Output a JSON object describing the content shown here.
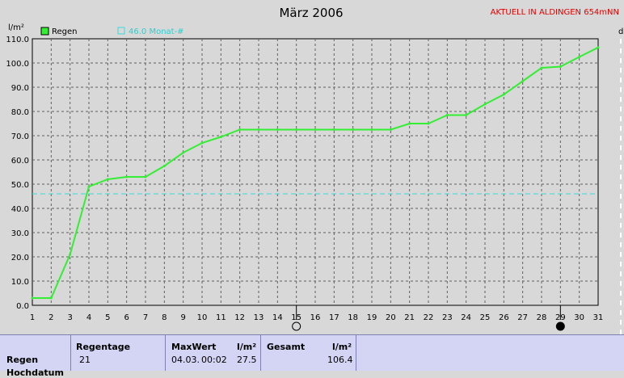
{
  "header": {
    "title": "März 2006",
    "station": "AKTUELL IN ALDINGEN 654mNN",
    "y_unit": "l/m²",
    "right_mark": "d"
  },
  "legend": [
    {
      "name": "Regen",
      "color": "#33ee33",
      "filled": true
    },
    {
      "name": "46.0 Monat-#",
      "color": "#33dddd",
      "filled": false
    }
  ],
  "colors": {
    "rain_line": "#33ee33",
    "avg_line": "#33dddd",
    "station": "#e00000",
    "panel_bg": "#d4d4f4"
  },
  "chart_data": {
    "type": "line",
    "title": "März 2006",
    "xlabel": "",
    "ylabel": "l/m²",
    "x": [
      1,
      2,
      3,
      4,
      5,
      6,
      7,
      8,
      9,
      10,
      11,
      12,
      13,
      14,
      15,
      16,
      17,
      18,
      19,
      20,
      21,
      22,
      23,
      24,
      25,
      26,
      27,
      28,
      29,
      30,
      31
    ],
    "xlim": [
      1,
      31
    ],
    "ylim": [
      0,
      110
    ],
    "yticks": [
      "0.0",
      "10.0",
      "20.0",
      "30.0",
      "40.0",
      "50.0",
      "60.0",
      "70.0",
      "80.0",
      "90.0",
      "100.0",
      "110.0"
    ],
    "grid": true,
    "series": [
      {
        "name": "Regen",
        "values": [
          3.0,
          3.0,
          21.0,
          49.0,
          52.0,
          53.0,
          53.0,
          57.5,
          63.0,
          67.0,
          69.5,
          72.5,
          72.5,
          72.5,
          72.5,
          72.5,
          72.5,
          72.5,
          72.5,
          72.5,
          75.0,
          75.0,
          78.5,
          78.5,
          83.0,
          87.0,
          92.5,
          98.0,
          98.5,
          102.5,
          106.4
        ]
      },
      {
        "name": "46.0 Monat-#",
        "style": "dashed",
        "values": [
          46.0,
          46.0,
          46.0,
          46.0,
          46.0,
          46.0,
          46.0,
          46.0,
          46.0,
          46.0,
          46.0,
          46.0,
          46.0,
          46.0,
          46.0,
          46.0,
          46.0,
          46.0,
          46.0,
          46.0,
          46.0,
          46.0,
          46.0,
          46.0,
          46.0,
          46.0,
          46.0,
          46.0,
          46.0,
          46.0,
          46.0
        ]
      }
    ],
    "markers": [
      {
        "x": 15,
        "symbol": "moon-empty-icon"
      },
      {
        "x": 29,
        "symbol": "moon-full-icon"
      }
    ]
  },
  "stats": {
    "row_label": "Regen",
    "row_label2": "Hochdatum",
    "regentage_header": "Regentage",
    "regentage_value": "21",
    "maxwert_header": "MaxWert",
    "maxwert_unit": "l/m²",
    "maxwert_date": "04.03.",
    "maxwert_time": "00:02",
    "maxwert_value": "27.5",
    "gesamt_header": "Gesamt",
    "gesamt_unit": "l/m²",
    "gesamt_value": "106.4"
  }
}
